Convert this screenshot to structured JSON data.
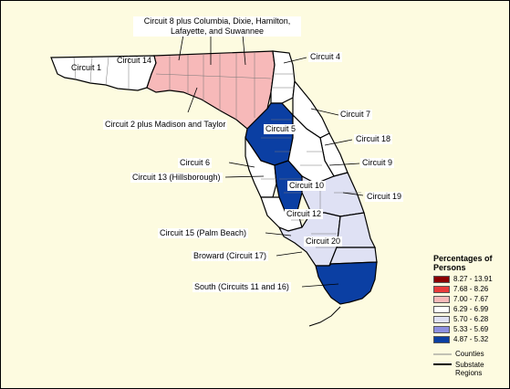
{
  "circuit_labels": {
    "c1": "Circuit 1",
    "c14": "Circuit 14",
    "c8": "Circuit 8 plus Columbia, Dixie, Hamilton, Lafayette, and Suwannee",
    "c4": "Circuit 4",
    "c2": "Circuit 2 plus Madison and Taylor",
    "c7": "Circuit 7",
    "c5": "Circuit 5",
    "c18": "Circuit 18",
    "c6": "Circuit 6",
    "c9": "Circuit 9",
    "c13": "Circuit 13 (Hillsborough)",
    "c10": "Circuit 10",
    "c19": "Circuit 19",
    "c12": "Circuit 12",
    "c15": "Circuit 15 (Palm Beach)",
    "c20": "Circuit 20",
    "c17": "Broward (Circuit 17)",
    "c11_16": "South (Circuits 11 and 16)"
  },
  "legend": {
    "title": "Percentages of Persons",
    "classes": [
      {
        "label": "8.27 - 13.91",
        "color": "#8b0000"
      },
      {
        "label": "7.68 - 8.26",
        "color": "#e83a3a"
      },
      {
        "label": "7.00 - 7.67",
        "color": "#f7b9b9"
      },
      {
        "label": "6.29 - 6.99",
        "color": "#ffffff"
      },
      {
        "label": "5.70 - 6.28",
        "color": "#dfe1f4"
      },
      {
        "label": "5.33 - 5.69",
        "color": "#8c8fe0"
      },
      {
        "label": "4.87 - 5.32",
        "color": "#0b3fa3"
      }
    ],
    "counties_label": "Counties",
    "substate_label": "Substate Regions"
  },
  "colors": {
    "background": "#fdfbe0",
    "white_class": "#ffffff",
    "pink_class": "#f7b9b9",
    "light_blue_class": "#dfe1f4",
    "dark_blue_class": "#0b3fa3"
  }
}
